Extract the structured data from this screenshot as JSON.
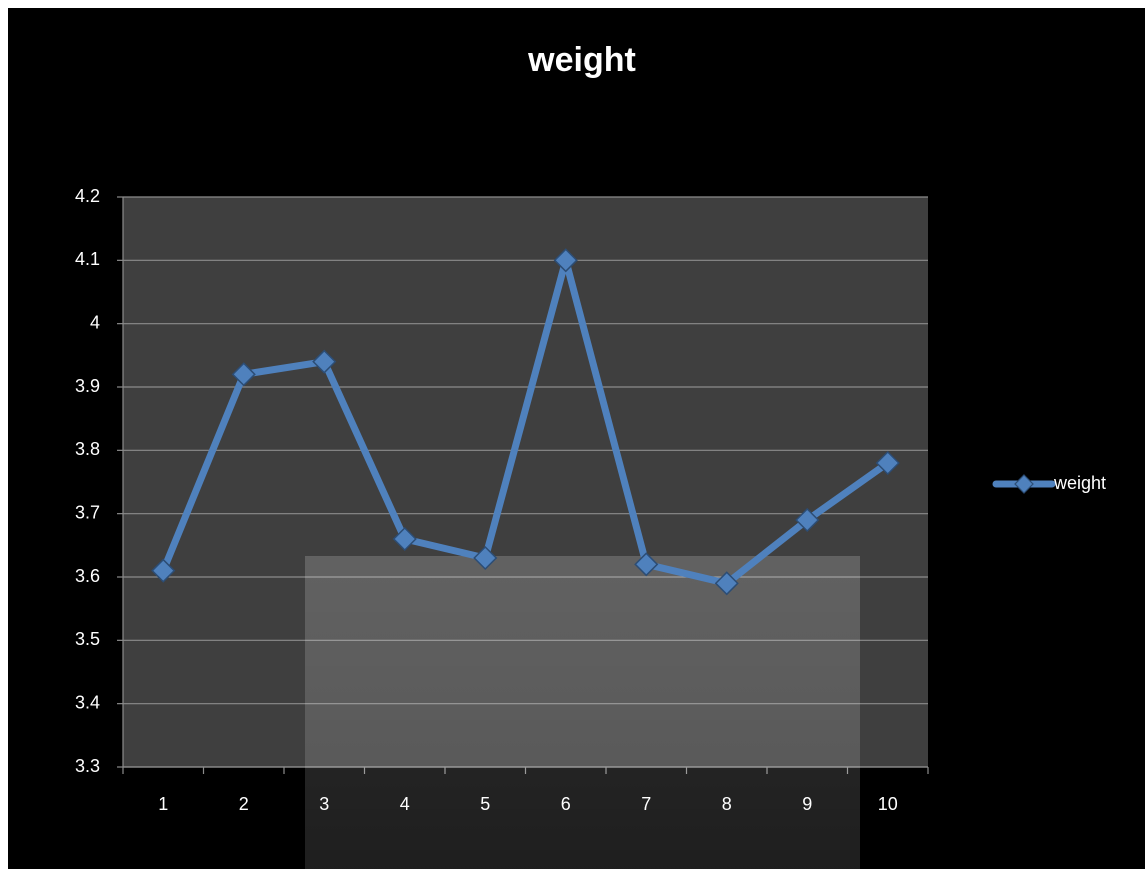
{
  "chart_data": {
    "type": "line",
    "title": "weight",
    "categories": [
      "1",
      "2",
      "3",
      "4",
      "5",
      "6",
      "7",
      "8",
      "9",
      "10"
    ],
    "series": [
      {
        "name": "weight",
        "color": "#4f81bd",
        "values": [
          3.61,
          3.92,
          3.94,
          3.66,
          3.63,
          4.1,
          3.62,
          3.59,
          3.69,
          3.78
        ]
      }
    ],
    "ylim": [
      3.3,
      4.2
    ],
    "yticks": [
      3.3,
      3.4,
      3.5,
      3.6,
      3.7,
      3.8,
      3.9,
      4,
      4.1,
      4.2
    ],
    "grid": true,
    "legend": "right"
  }
}
